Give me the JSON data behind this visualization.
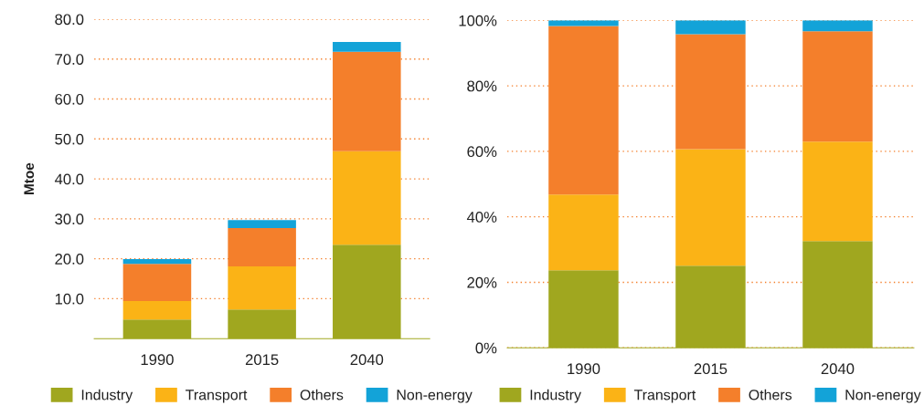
{
  "chart_data": [
    {
      "type": "bar",
      "stacked": true,
      "ylabel": "Mtoe",
      "categories": [
        "1990",
        "2015",
        "2040"
      ],
      "series": [
        {
          "name": "Industry",
          "color": "#a0a71f",
          "values": [
            4.8,
            7.3,
            23.5
          ]
        },
        {
          "name": "Transport",
          "color": "#fbb316",
          "values": [
            4.6,
            10.8,
            23.4
          ]
        },
        {
          "name": "Others",
          "color": "#f47f2b",
          "values": [
            9.3,
            9.6,
            24.9
          ]
        },
        {
          "name": "Non-energy",
          "color": "#13a3d8",
          "values": [
            1.2,
            2.0,
            2.5
          ]
        }
      ],
      "ylim": [
        0,
        80
      ],
      "yticks": [
        {
          "value": 10,
          "label": "10.0"
        },
        {
          "value": 20,
          "label": "20.0"
        },
        {
          "value": 30,
          "label": "30.0"
        },
        {
          "value": 40,
          "label": "40.0"
        },
        {
          "value": 50,
          "label": "50.0"
        },
        {
          "value": 60,
          "label": "60.0"
        },
        {
          "value": 70,
          "label": "70.0"
        },
        {
          "value": 80,
          "label": "80.0"
        }
      ],
      "grid": "y",
      "legend": "bottom"
    },
    {
      "type": "bar",
      "stacked": true,
      "categories": [
        "1990",
        "2015",
        "2040"
      ],
      "series": [
        {
          "name": "Industry",
          "color": "#a0a71f",
          "values": [
            23.7,
            25.1,
            32.6
          ]
        },
        {
          "name": "Transport",
          "color": "#fbb316",
          "values": [
            23.1,
            35.6,
            30.4
          ]
        },
        {
          "name": "Others",
          "color": "#f47f2b",
          "values": [
            51.5,
            35.1,
            33.7
          ]
        },
        {
          "name": "Non-energy",
          "color": "#13a3d8",
          "values": [
            1.7,
            4.2,
            3.3
          ]
        }
      ],
      "ylim": [
        0,
        100
      ],
      "yticks": [
        {
          "value": 0,
          "label": "0%"
        },
        {
          "value": 20,
          "label": "20%"
        },
        {
          "value": 40,
          "label": "40%"
        },
        {
          "value": 60,
          "label": "60%"
        },
        {
          "value": 80,
          "label": "80%"
        },
        {
          "value": 100,
          "label": "100%"
        }
      ],
      "grid": "y",
      "legend": "bottom"
    }
  ]
}
